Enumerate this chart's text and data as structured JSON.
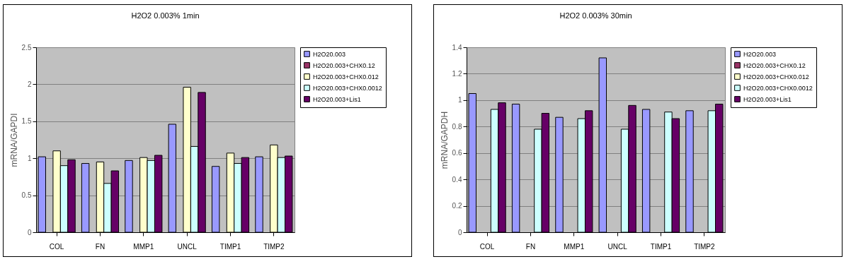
{
  "chart_data": [
    {
      "type": "bar",
      "title": "H2O2 0.003% 1min",
      "ylabel": "mRNA/GAPDI",
      "categories": [
        "COL",
        "FN",
        "MMP1",
        "UNCL",
        "TIMP1",
        "TIMP2"
      ],
      "ylim": [
        0,
        2.5
      ],
      "yticks": [
        0,
        0.5,
        1,
        1.5,
        2,
        2.5
      ],
      "grid": "y",
      "legend": "right",
      "series": [
        {
          "name": "H2O20.003",
          "color": "#9999ff",
          "values": [
            1.02,
            0.93,
            0.97,
            1.46,
            0.89,
            1.02
          ]
        },
        {
          "name": "H2O20.003+CHX0.12",
          "color": "#993366",
          "values": [
            null,
            null,
            null,
            null,
            null,
            null
          ]
        },
        {
          "name": "H2O20.003+CHX0.012",
          "color": "#ffffcc",
          "values": [
            1.1,
            0.95,
            1.01,
            1.96,
            1.07,
            1.18
          ]
        },
        {
          "name": "H2O20.003+CHX0.0012",
          "color": "#ccffff",
          "values": [
            0.9,
            0.66,
            0.97,
            1.16,
            0.93,
            1.01
          ]
        },
        {
          "name": "H2O20.003+Lis1",
          "color": "#660066",
          "values": [
            0.98,
            0.83,
            1.04,
            1.89,
            1.01,
            1.03
          ]
        }
      ]
    },
    {
      "type": "bar",
      "title": "H2O2 0.003% 30min",
      "ylabel": "mRNA/GAPDH",
      "categories": [
        "COL",
        "FN",
        "MMP1",
        "UNCL",
        "TIMP1",
        "TIMP2"
      ],
      "ylim": [
        0,
        1.4
      ],
      "yticks": [
        0,
        0.2,
        0.4,
        0.6,
        0.8,
        1,
        1.2,
        1.4
      ],
      "grid": "y",
      "legend": "right",
      "series": [
        {
          "name": "H2O20.003",
          "color": "#9999ff",
          "values": [
            1.05,
            0.97,
            0.87,
            1.32,
            0.93,
            0.92
          ]
        },
        {
          "name": "H2O20.003+CHX0.12",
          "color": "#993366",
          "values": [
            null,
            null,
            null,
            null,
            null,
            null
          ]
        },
        {
          "name": "H2O20.003+CHX0.012",
          "color": "#ffffcc",
          "values": [
            null,
            null,
            null,
            null,
            null,
            null
          ]
        },
        {
          "name": "H2O20.003+CHX0.0012",
          "color": "#ccffff",
          "values": [
            0.93,
            0.78,
            0.86,
            0.78,
            0.91,
            0.92
          ]
        },
        {
          "name": "H2O20.003+Lis1",
          "color": "#660066",
          "values": [
            0.98,
            0.9,
            0.92,
            0.96,
            0.86,
            0.97
          ]
        }
      ]
    }
  ]
}
